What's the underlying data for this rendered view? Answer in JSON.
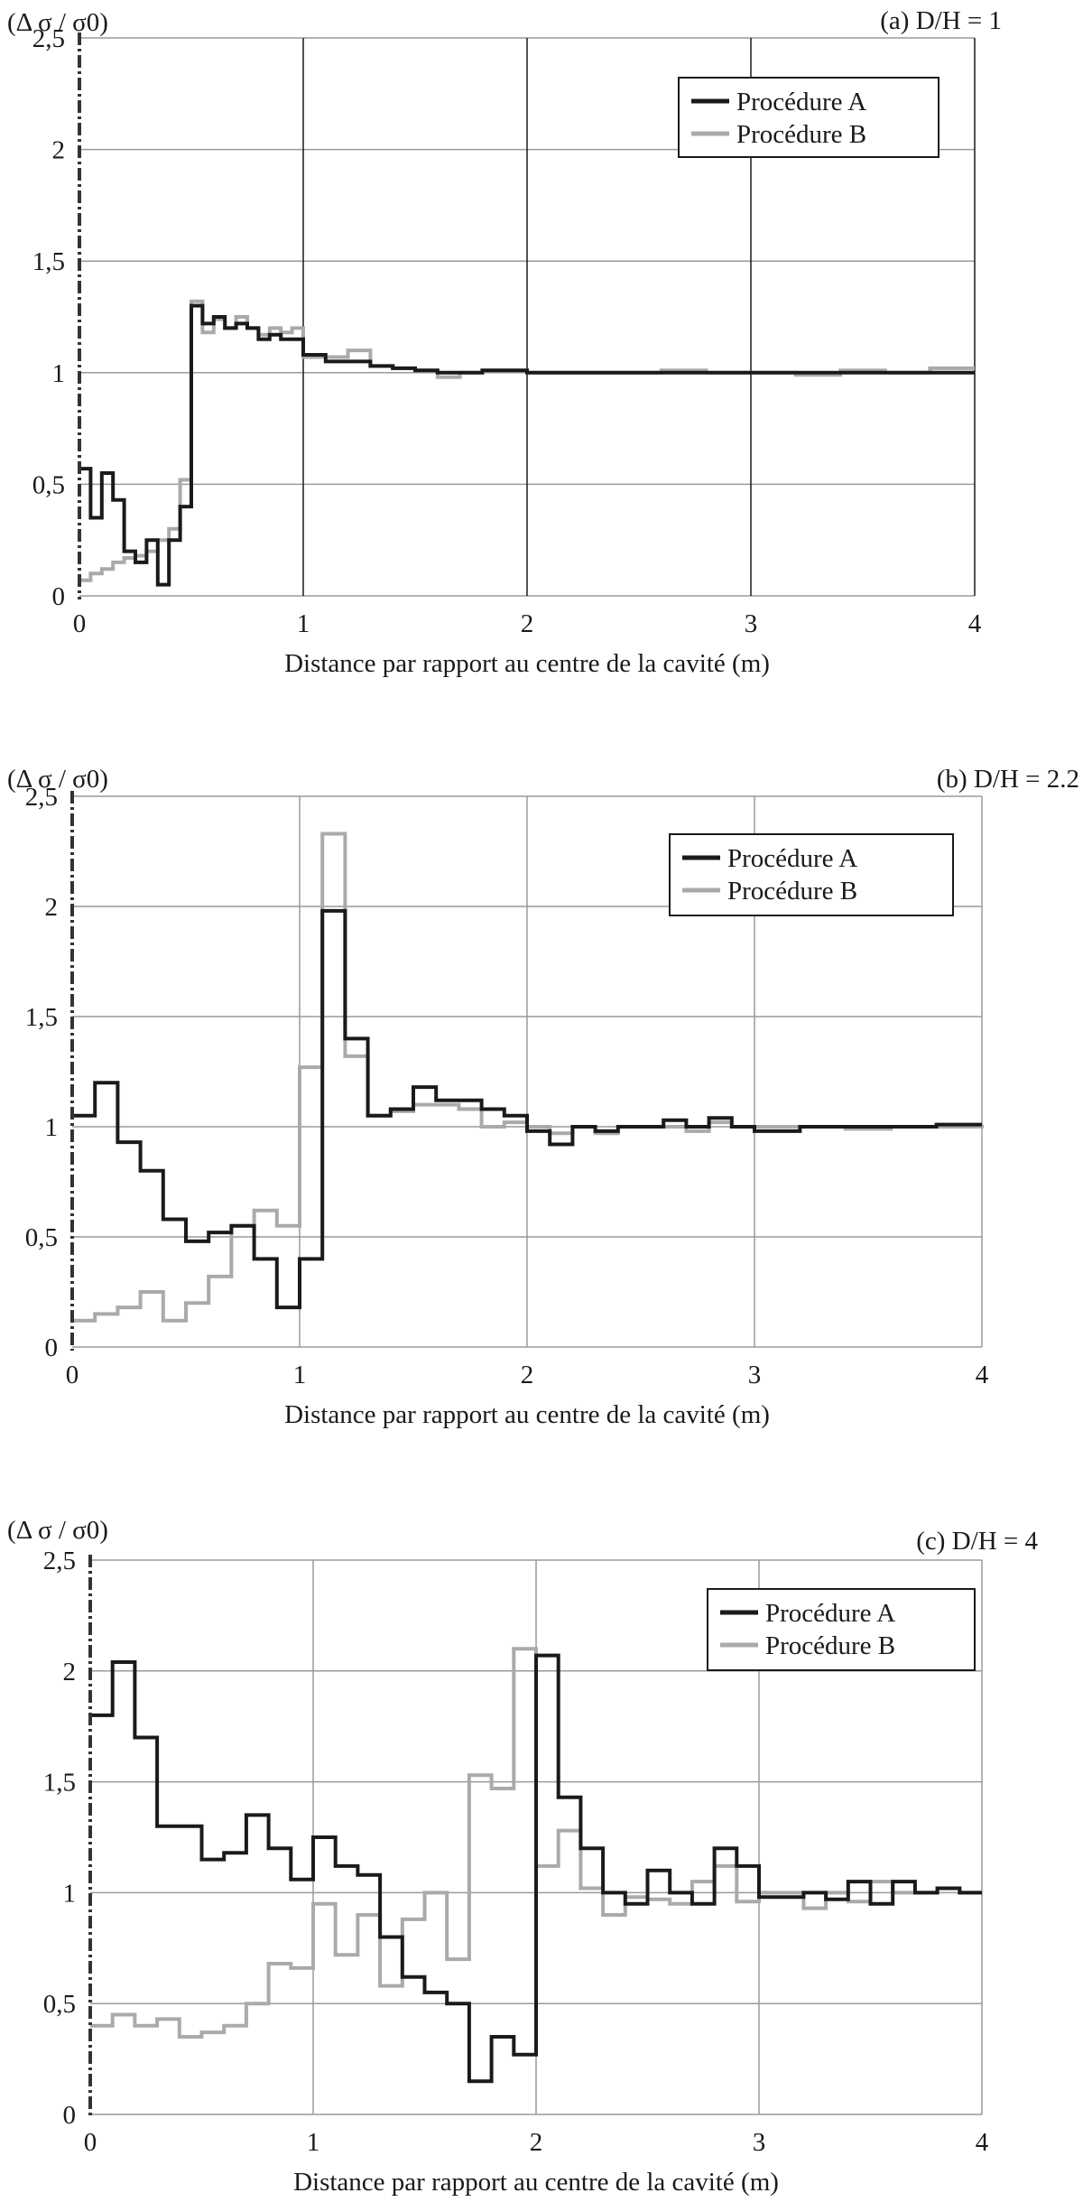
{
  "chart_data": [
    {
      "type": "line",
      "title": "(a)  D/H = 1",
      "ylabel": "(Δ σ / σ0)",
      "xlabel": "Distance par rapport au centre de la cavité (m)",
      "xlim": [
        0,
        4
      ],
      "ylim": [
        0,
        2.5
      ],
      "xticks": [
        "0",
        "1",
        "2",
        "3",
        "4"
      ],
      "yticks": [
        "0",
        "0,5",
        "1",
        "1,5",
        "2",
        "2,5"
      ],
      "grid": true,
      "legend_position": "top-right",
      "series": [
        {
          "name": "Procédure A",
          "color": "#1a1a1a",
          "x": [
            0,
            0.05,
            0.1,
            0.15,
            0.2,
            0.25,
            0.3,
            0.35,
            0.4,
            0.45,
            0.5,
            0.55,
            0.6,
            0.65,
            0.7,
            0.75,
            0.8,
            0.85,
            0.9,
            0.95,
            1.0,
            1.1,
            1.2,
            1.3,
            1.4,
            1.5,
            1.6,
            1.7,
            1.8,
            2.0,
            2.2,
            2.4,
            2.6,
            2.8,
            3.0,
            3.2,
            3.4,
            3.6,
            3.8,
            4.0
          ],
          "y": [
            0.57,
            0.35,
            0.55,
            0.43,
            0.2,
            0.15,
            0.25,
            0.05,
            0.25,
            0.4,
            1.3,
            1.22,
            1.25,
            1.2,
            1.22,
            1.2,
            1.15,
            1.17,
            1.15,
            1.15,
            1.08,
            1.05,
            1.05,
            1.03,
            1.02,
            1.01,
            1.0,
            1.0,
            1.01,
            1.0,
            1.0,
            1.0,
            1.0,
            1.0,
            1.0,
            1.0,
            1.0,
            1.0,
            1.0,
            1.0
          ]
        },
        {
          "name": "Procédure B",
          "color": "#aaaaaa",
          "x": [
            0,
            0.05,
            0.1,
            0.15,
            0.2,
            0.25,
            0.3,
            0.35,
            0.4,
            0.45,
            0.5,
            0.55,
            0.6,
            0.65,
            0.7,
            0.75,
            0.8,
            0.85,
            0.9,
            0.95,
            1.0,
            1.2,
            1.3,
            1.4,
            1.5,
            1.6,
            1.7,
            1.8,
            2.0,
            2.2,
            2.4,
            2.6,
            2.8,
            3.0,
            3.2,
            3.4,
            3.6,
            3.8,
            4.0
          ],
          "y": [
            0.07,
            0.1,
            0.12,
            0.15,
            0.17,
            0.18,
            0.2,
            0.25,
            0.3,
            0.52,
            1.32,
            1.18,
            1.24,
            1.2,
            1.25,
            1.2,
            1.17,
            1.2,
            1.18,
            1.2,
            1.07,
            1.1,
            1.03,
            1.02,
            1.01,
            0.98,
            1.0,
            1.01,
            1.0,
            1.0,
            1.0,
            1.01,
            1.0,
            1.0,
            0.99,
            1.01,
            1.0,
            1.02,
            1.02
          ]
        }
      ]
    },
    {
      "type": "line",
      "title": "(b)  D/H = 2.2",
      "ylabel": "(Δ σ / σ0)",
      "xlabel": "Distance par rapport au centre de la cavité (m)",
      "xlim": [
        0,
        4
      ],
      "ylim": [
        0,
        2.5
      ],
      "xticks": [
        "0",
        "1",
        "2",
        "3",
        "4"
      ],
      "yticks": [
        "0",
        "0,5",
        "1",
        "1,5",
        "2",
        "2,5"
      ],
      "grid": true,
      "legend_position": "top-right",
      "series": [
        {
          "name": "Procédure A",
          "color": "#1a1a1a",
          "x": [
            0,
            0.1,
            0.2,
            0.3,
            0.4,
            0.5,
            0.6,
            0.7,
            0.8,
            0.9,
            1.0,
            1.1,
            1.2,
            1.3,
            1.4,
            1.5,
            1.6,
            1.7,
            1.8,
            1.9,
            2.0,
            2.1,
            2.2,
            2.3,
            2.4,
            2.5,
            2.6,
            2.7,
            2.8,
            2.9,
            3.0,
            3.2,
            3.4,
            3.6,
            3.8,
            4.0
          ],
          "y": [
            1.05,
            1.2,
            0.93,
            0.8,
            0.58,
            0.48,
            0.52,
            0.55,
            0.4,
            0.18,
            0.4,
            1.98,
            1.4,
            1.05,
            1.08,
            1.18,
            1.12,
            1.12,
            1.08,
            1.05,
            0.98,
            0.92,
            1.0,
            0.98,
            1.0,
            1.0,
            1.03,
            1.0,
            1.04,
            1.0,
            0.98,
            1.0,
            1.0,
            1.0,
            1.01,
            1.01
          ]
        },
        {
          "name": "Procédure B",
          "color": "#aaaaaa",
          "x": [
            0,
            0.1,
            0.2,
            0.3,
            0.4,
            0.5,
            0.6,
            0.7,
            0.8,
            0.9,
            1.0,
            1.1,
            1.2,
            1.3,
            1.4,
            1.5,
            1.6,
            1.7,
            1.8,
            1.9,
            2.0,
            2.1,
            2.2,
            2.3,
            2.4,
            2.5,
            2.6,
            2.7,
            2.8,
            2.9,
            3.0,
            3.2,
            3.4,
            3.6,
            3.8,
            4.0
          ],
          "y": [
            0.12,
            0.15,
            0.18,
            0.25,
            0.12,
            0.2,
            0.32,
            0.55,
            0.62,
            0.55,
            1.27,
            2.33,
            1.32,
            1.05,
            1.07,
            1.1,
            1.1,
            1.08,
            1.0,
            1.02,
            1.0,
            0.97,
            1.0,
            0.97,
            1.0,
            1.0,
            1.0,
            0.98,
            1.02,
            1.0,
            1.0,
            1.0,
            0.99,
            1.0,
            1.0,
            1.01
          ]
        }
      ]
    },
    {
      "type": "line",
      "title": "(c)  D/H = 4",
      "ylabel": "(Δ σ / σ0)",
      "xlabel": "Distance par rapport au centre de la cavité (m)",
      "xlim": [
        0,
        4
      ],
      "ylim": [
        0,
        2.5
      ],
      "xticks": [
        "0",
        "1",
        "2",
        "3",
        "4"
      ],
      "yticks": [
        "0",
        "0,5",
        "1",
        "1,5",
        "2",
        "2,5"
      ],
      "grid": true,
      "legend_position": "top-right",
      "series": [
        {
          "name": "Procédure A",
          "color": "#1a1a1a",
          "x": [
            0,
            0.1,
            0.2,
            0.3,
            0.4,
            0.5,
            0.6,
            0.7,
            0.8,
            0.9,
            1.0,
            1.1,
            1.2,
            1.3,
            1.4,
            1.5,
            1.6,
            1.7,
            1.8,
            1.9,
            2.0,
            2.1,
            2.2,
            2.3,
            2.4,
            2.5,
            2.6,
            2.7,
            2.8,
            2.9,
            3.0,
            3.1,
            3.2,
            3.3,
            3.4,
            3.5,
            3.6,
            3.7,
            3.8,
            3.9,
            4.0
          ],
          "y": [
            1.8,
            2.04,
            1.7,
            1.3,
            1.3,
            1.15,
            1.18,
            1.35,
            1.2,
            1.06,
            1.25,
            1.12,
            1.08,
            0.8,
            0.62,
            0.55,
            0.5,
            0.15,
            0.35,
            0.27,
            2.07,
            1.43,
            1.2,
            1.0,
            0.95,
            1.1,
            1.0,
            0.95,
            1.2,
            1.12,
            0.98,
            0.98,
            1.0,
            0.97,
            1.05,
            0.95,
            1.05,
            1.0,
            1.02,
            1.0,
            1.0
          ]
        },
        {
          "name": "Procédure B",
          "color": "#aaaaaa",
          "x": [
            0,
            0.1,
            0.2,
            0.3,
            0.4,
            0.5,
            0.6,
            0.7,
            0.8,
            0.9,
            1.0,
            1.1,
            1.2,
            1.3,
            1.4,
            1.5,
            1.6,
            1.7,
            1.8,
            1.9,
            2.0,
            2.1,
            2.2,
            2.3,
            2.4,
            2.5,
            2.6,
            2.7,
            2.8,
            2.9,
            3.0,
            3.1,
            3.2,
            3.3,
            3.4,
            3.5,
            3.6,
            3.7,
            3.8,
            3.9,
            4.0
          ],
          "y": [
            0.4,
            0.45,
            0.4,
            0.43,
            0.35,
            0.37,
            0.4,
            0.5,
            0.68,
            0.66,
            0.95,
            0.72,
            0.9,
            0.58,
            0.88,
            1.0,
            0.7,
            1.53,
            1.47,
            2.1,
            1.12,
            1.28,
            1.02,
            0.9,
            0.98,
            0.97,
            0.95,
            1.05,
            1.12,
            0.96,
            1.0,
            1.0,
            0.93,
            1.0,
            0.96,
            1.05,
            1.0,
            1.0,
            1.02,
            1.0,
            1.0
          ]
        }
      ]
    }
  ]
}
